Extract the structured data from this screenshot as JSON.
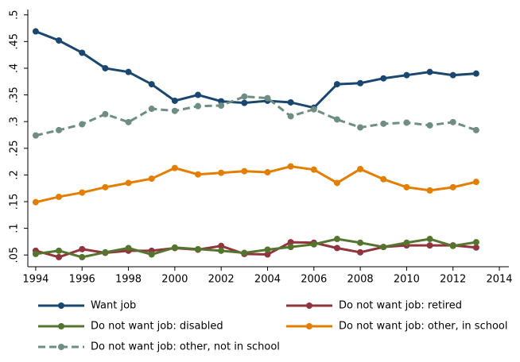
{
  "chart_data": {
    "type": "line",
    "x": [
      1994,
      1995,
      1996,
      1997,
      1998,
      1999,
      2000,
      2001,
      2002,
      2003,
      2004,
      2005,
      2006,
      2007,
      2008,
      2009,
      2010,
      2011,
      2012,
      2013
    ],
    "series": [
      {
        "name": "Want job",
        "color": "#1a476f",
        "dashed": false,
        "values": [
          0.469,
          0.452,
          0.429,
          0.4,
          0.393,
          0.37,
          0.339,
          0.35,
          0.338,
          0.335,
          0.339,
          0.336,
          0.326,
          0.37,
          0.372,
          0.381,
          0.387,
          0.393,
          0.387,
          0.39
        ]
      },
      {
        "name": "Do not want job: retired",
        "color": "#90353b",
        "dashed": false,
        "values": [
          0.058,
          0.046,
          0.061,
          0.054,
          0.058,
          0.058,
          0.063,
          0.06,
          0.067,
          0.052,
          0.051,
          0.074,
          0.073,
          0.063,
          0.055,
          0.065,
          0.068,
          0.068,
          0.068,
          0.064
        ]
      },
      {
        "name": "Do not want job: disabled",
        "color": "#55752f",
        "dashed": false,
        "values": [
          0.052,
          0.058,
          0.046,
          0.055,
          0.063,
          0.051,
          0.064,
          0.061,
          0.058,
          0.054,
          0.06,
          0.065,
          0.07,
          0.08,
          0.073,
          0.065,
          0.073,
          0.08,
          0.067,
          0.074
        ]
      },
      {
        "name": "Do not want job: other, in school",
        "color": "#e37e00",
        "dashed": false,
        "values": [
          0.149,
          0.159,
          0.167,
          0.177,
          0.185,
          0.193,
          0.213,
          0.201,
          0.204,
          0.207,
          0.205,
          0.216,
          0.21,
          0.185,
          0.211,
          0.192,
          0.177,
          0.171,
          0.177,
          0.187
        ]
      },
      {
        "name": "Do not want job: other, not in school",
        "color": "#6e8e84",
        "dashed": true,
        "values": [
          0.274,
          0.284,
          0.295,
          0.314,
          0.299,
          0.324,
          0.32,
          0.329,
          0.33,
          0.347,
          0.344,
          0.31,
          0.323,
          0.304,
          0.289,
          0.296,
          0.298,
          0.293,
          0.299,
          0.284
        ]
      }
    ],
    "xlim": [
      1993.66,
      2014.41
    ],
    "xticks": [
      1994,
      1996,
      1998,
      2000,
      2002,
      2004,
      2006,
      2008,
      2010,
      2012,
      2014
    ],
    "ylim": [
      0.028,
      0.51
    ],
    "yticks": [
      {
        "value": 0.05,
        "label": ".05"
      },
      {
        "value": 0.1,
        "label": ".1"
      },
      {
        "value": 0.15,
        "label": ".15"
      },
      {
        "value": 0.2,
        "label": ".2"
      },
      {
        "value": 0.25,
        "label": ".25"
      },
      {
        "value": 0.3,
        "label": ".3"
      },
      {
        "value": 0.35,
        "label": ".35"
      },
      {
        "value": 0.4,
        "label": ".4"
      },
      {
        "value": 0.45,
        "label": ".45"
      },
      {
        "value": 0.5,
        "label": ".5"
      }
    ],
    "grid": false
  }
}
